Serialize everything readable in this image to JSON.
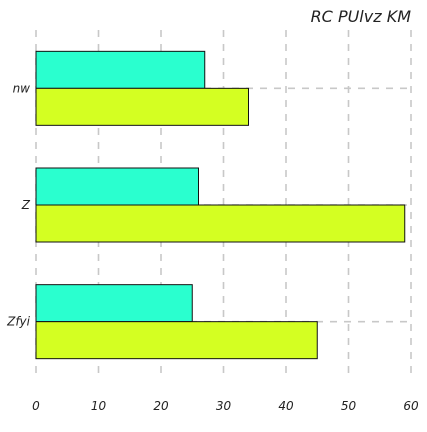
{
  "chart_data": {
    "type": "bar",
    "orientation": "horizontal",
    "title": "RC PUlvz KM",
    "xlabel": "",
    "ylabel": "",
    "categories": [
      "nw",
      "Z",
      "Zfyi"
    ],
    "series": [
      {
        "values": [
          27,
          26,
          25
        ],
        "color": "#2affcf"
      },
      {
        "values": [
          34,
          59,
          45
        ],
        "color": "#d4ff22"
      }
    ],
    "xlim": [
      0,
      60
    ],
    "x_ticks": [
      0,
      10,
      20,
      30,
      40,
      50,
      60
    ],
    "grid": true,
    "legend": "none"
  },
  "colors": {
    "grid": "#c8c8c8",
    "bar_edge": "#111111",
    "text": "#222222"
  }
}
